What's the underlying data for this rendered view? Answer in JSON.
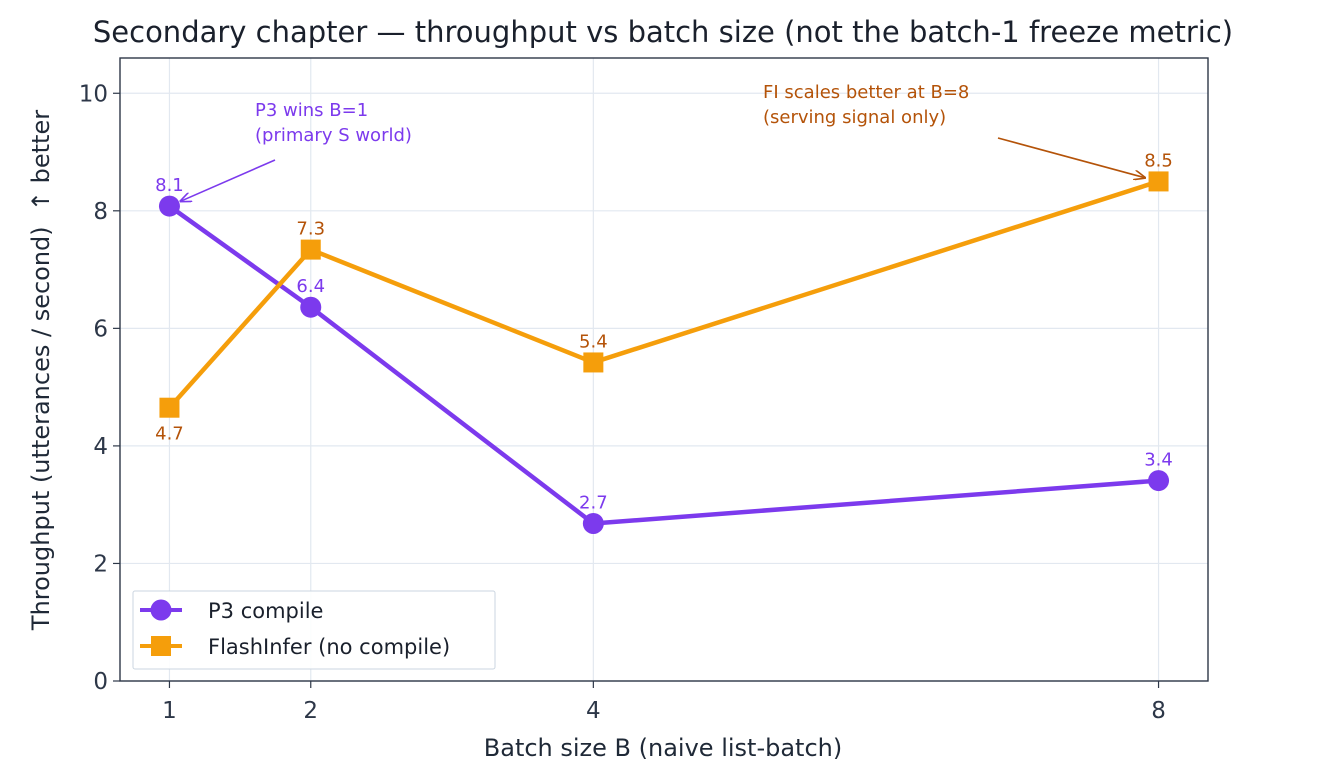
{
  "chart_data": {
    "type": "line",
    "title": "Secondary chapter — throughput vs batch size (not the batch-1 freeze metric)",
    "xlabel": "Batch size B (naive list-batch)",
    "ylabel": "Throughput (utterances / second)  ↑ better",
    "x": [
      1,
      2,
      4,
      8
    ],
    "xticks": [
      "1",
      "2",
      "4",
      "8"
    ],
    "xlim": [
      0.65,
      8.35
    ],
    "ylim": [
      0,
      10.6
    ],
    "yticks": [
      "0",
      "2",
      "4",
      "6",
      "8",
      "10"
    ],
    "grid": true,
    "legend_position": "lower-left",
    "series": [
      {
        "name": "P3 compile",
        "values": [
          8.08,
          6.36,
          2.68,
          3.41
        ],
        "labels": [
          "8.1",
          "6.4",
          "2.7",
          "3.4"
        ],
        "color": "#7c3aed",
        "label_color": "#7c3aed",
        "marker": "circle"
      },
      {
        "name": "FlashInfer (no compile)",
        "values": [
          4.65,
          7.34,
          5.42,
          8.5
        ],
        "labels": [
          "4.7",
          "7.3",
          "5.4",
          "8.5"
        ],
        "color": "#f59e0b",
        "label_color": "#b45309",
        "marker": "square"
      }
    ],
    "annotations": [
      {
        "lines": [
          "P3 wins B=1",
          "(primary S world)"
        ],
        "target_x": 1,
        "target_y": 8.08,
        "color": "#7c3aed"
      },
      {
        "lines": [
          "FI scales better at B=8",
          "(serving signal only)"
        ],
        "target_x": 8,
        "target_y": 8.5,
        "color": "#b45309"
      }
    ]
  }
}
